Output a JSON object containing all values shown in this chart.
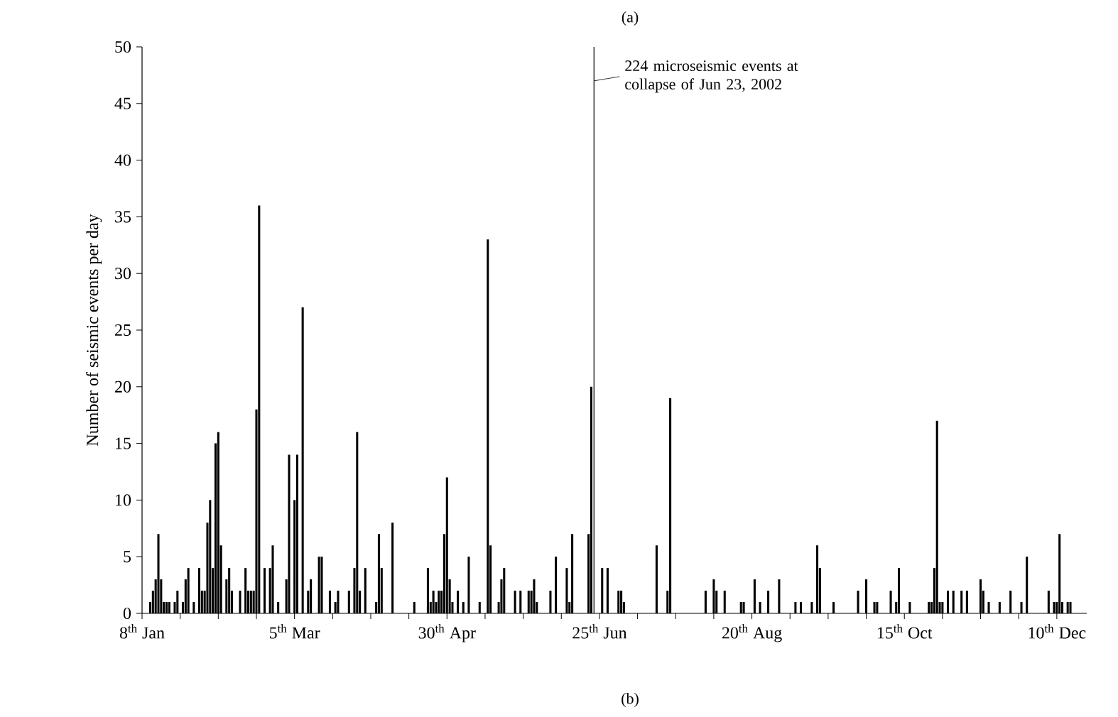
{
  "chart_data": {
    "type": "bar",
    "ylabel": "Number of seismic events per day",
    "annotations": [
      "(a)",
      "(b)"
    ],
    "x": [
      "2002-01-11",
      "2002-01-12",
      "2002-01-13",
      "2002-01-14",
      "2002-01-15",
      "2002-01-16",
      "2002-01-17",
      "2002-01-18",
      "2002-01-20",
      "2002-01-21",
      "2002-01-23",
      "2002-01-24",
      "2002-01-25",
      "2002-01-27",
      "2002-01-29",
      "2002-01-30",
      "2002-01-31",
      "2002-02-01",
      "2002-02-02",
      "2002-02-03",
      "2002-02-04",
      "2002-02-05",
      "2002-02-06",
      "2002-02-08",
      "2002-02-09",
      "2002-02-10",
      "2002-02-13",
      "2002-02-15",
      "2002-02-16",
      "2002-02-17",
      "2002-02-18",
      "2002-02-19",
      "2002-02-20",
      "2002-02-22",
      "2002-02-24",
      "2002-02-25",
      "2002-02-27",
      "2002-03-02",
      "2002-03-03",
      "2002-03-05",
      "2002-03-06",
      "2002-03-08",
      "2002-03-10",
      "2002-03-11",
      "2002-03-14",
      "2002-03-15",
      "2002-03-18",
      "2002-03-20",
      "2002-03-21",
      "2002-03-25",
      "2002-03-27",
      "2002-03-28",
      "2002-03-29",
      "2002-03-31",
      "2002-04-04",
      "2002-04-05",
      "2002-04-06",
      "2002-04-10",
      "2002-04-18",
      "2002-04-23",
      "2002-04-24",
      "2002-04-25",
      "2002-04-26",
      "2002-04-27",
      "2002-04-28",
      "2002-04-29",
      "2002-04-30",
      "2002-05-01",
      "2002-05-02",
      "2002-05-04",
      "2002-05-06",
      "2002-05-08",
      "2002-05-12",
      "2002-05-15",
      "2002-05-16",
      "2002-05-19",
      "2002-05-20",
      "2002-05-21",
      "2002-05-25",
      "2002-05-27",
      "2002-05-30",
      "2002-05-31",
      "2002-06-01",
      "2002-06-02",
      "2002-06-07",
      "2002-06-09",
      "2002-06-13",
      "2002-06-14",
      "2002-06-15",
      "2002-06-21",
      "2002-06-22",
      "2002-06-26",
      "2002-06-28",
      "2002-07-02",
      "2002-07-03",
      "2002-07-04",
      "2002-07-16",
      "2002-07-20",
      "2002-07-21",
      "2002-08-03",
      "2002-08-06",
      "2002-08-07",
      "2002-08-10",
      "2002-08-16",
      "2002-08-17",
      "2002-08-21",
      "2002-08-23",
      "2002-08-26",
      "2002-08-30",
      "2002-09-05",
      "2002-09-07",
      "2002-09-11",
      "2002-09-13",
      "2002-09-14",
      "2002-09-19",
      "2002-09-28",
      "2002-10-01",
      "2002-10-04",
      "2002-10-05",
      "2002-10-10",
      "2002-10-12",
      "2002-10-13",
      "2002-10-17",
      "2002-10-24",
      "2002-10-25",
      "2002-10-26",
      "2002-10-27",
      "2002-10-28",
      "2002-10-29",
      "2002-10-31",
      "2002-11-02",
      "2002-11-05",
      "2002-11-07",
      "2002-11-12",
      "2002-11-13",
      "2002-11-15",
      "2002-11-19",
      "2002-11-23",
      "2002-11-27",
      "2002-11-29",
      "2002-12-07",
      "2002-12-09",
      "2002-12-10",
      "2002-12-11",
      "2002-12-12",
      "2002-12-14",
      "2002-12-15"
    ],
    "series": [
      {
        "color": "#000000",
        "values": [
          1,
          2,
          3,
          7,
          3,
          1,
          1,
          1,
          1,
          2,
          1,
          3,
          4,
          1,
          4,
          2,
          2,
          8,
          10,
          4,
          15,
          16,
          6,
          3,
          4,
          2,
          2,
          4,
          2,
          2,
          2,
          18,
          36,
          4,
          4,
          6,
          1,
          3,
          14,
          10,
          14,
          27,
          2,
          3,
          5,
          5,
          2,
          1,
          2,
          2,
          4,
          16,
          2,
          4,
          1,
          7,
          4,
          8,
          1,
          4,
          1,
          2,
          1,
          2,
          2,
          7,
          12,
          3,
          1,
          2,
          1,
          5,
          1,
          33,
          6,
          1,
          3,
          4,
          2,
          2,
          2,
          2,
          3,
          1,
          2,
          5,
          4,
          1,
          7,
          7,
          20,
          4,
          4,
          2,
          2,
          1,
          6,
          2,
          19,
          2,
          3,
          2,
          2,
          1,
          1,
          3,
          1,
          2,
          3,
          1,
          1,
          1,
          6,
          4,
          1,
          2,
          3,
          1,
          1,
          2,
          1,
          4,
          1,
          1,
          1,
          4,
          17,
          1,
          1,
          2,
          2,
          2,
          2,
          3,
          2,
          1,
          1,
          2,
          1,
          5,
          2,
          1,
          1,
          7,
          1,
          1,
          1
        ]
      }
    ],
    "xlim": [
      "2002-01-08",
      "2002-12-21"
    ],
    "xticks": [
      {
        "value": "2002-01-08",
        "label": "8$^{th}$ Jan"
      },
      {
        "value": "2002-01-22",
        "label": null
      },
      {
        "value": "2002-02-05",
        "label": null
      },
      {
        "value": "2002-02-19",
        "label": null
      },
      {
        "value": "2002-03-05",
        "label": "5$^{th}$ Mar"
      },
      {
        "value": "2002-03-19",
        "label": null
      },
      {
        "value": "2002-04-02",
        "label": null
      },
      {
        "value": "2002-04-16",
        "label": null
      },
      {
        "value": "2002-04-30",
        "label": "30$^{th}$ Apr"
      },
      {
        "value": "2002-05-14",
        "label": null
      },
      {
        "value": "2002-05-28",
        "label": null
      },
      {
        "value": "2002-06-11",
        "label": null
      },
      {
        "value": "2002-06-25",
        "label": "25$^{th}$ Jun"
      },
      {
        "value": "2002-07-09",
        "label": null
      },
      {
        "value": "2002-07-23",
        "label": null
      },
      {
        "value": "2002-08-06",
        "label": null
      },
      {
        "value": "2002-08-20",
        "label": "20$^{th}$ Aug"
      },
      {
        "value": "2002-09-03",
        "label": null
      },
      {
        "value": "2002-09-17",
        "label": null
      },
      {
        "value": "2002-10-01",
        "label": null
      },
      {
        "value": "2002-10-15",
        "label": "15$^{th}$ Oct"
      },
      {
        "value": "2002-10-29",
        "label": null
      },
      {
        "value": "2002-11-12",
        "label": null
      },
      {
        "value": "2002-11-26",
        "label": null
      },
      {
        "value": "2002-12-10",
        "label": "10$^{th}$ Dec"
      }
    ],
    "ylim": [
      0,
      50
    ],
    "yticks": [
      0,
      5,
      10,
      15,
      20,
      25,
      30,
      35,
      40,
      45,
      50
    ],
    "ref_lines": [
      {
        "axis": "x",
        "value": "2002-06-23",
        "label": "224 microseismic events at collapse of Jun 23, 2002",
        "color": "#000000"
      }
    ]
  }
}
